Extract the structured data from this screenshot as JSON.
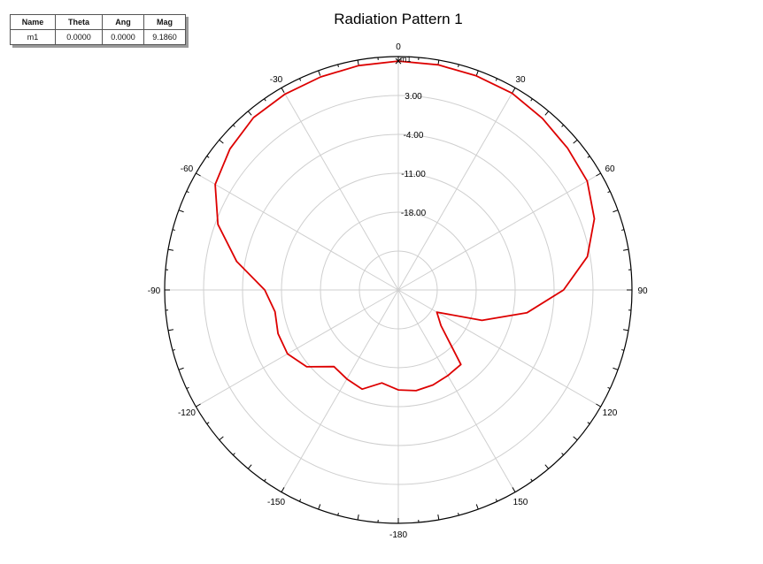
{
  "marker_table": {
    "headers": [
      "Name",
      "Theta",
      "Ang",
      "Mag"
    ],
    "rows": [
      {
        "name": "m1",
        "theta": "0.0000",
        "ang": "0.0000",
        "mag": "9.1860"
      }
    ]
  },
  "chart_data": {
    "type": "polar-line",
    "title": "Radiation Pattern 1",
    "angle_labels": [
      {
        "angle": 0,
        "label": "0"
      },
      {
        "angle": 30,
        "label": "30"
      },
      {
        "angle": 60,
        "label": "60"
      },
      {
        "angle": 90,
        "label": "90"
      },
      {
        "angle": 120,
        "label": "120"
      },
      {
        "angle": 150,
        "label": "150"
      },
      {
        "angle": 180,
        "label": "-180"
      },
      {
        "angle": -150,
        "label": "-150"
      },
      {
        "angle": -120,
        "label": "-120"
      },
      {
        "angle": -90,
        "label": "-90"
      },
      {
        "angle": -60,
        "label": "-60"
      },
      {
        "angle": -30,
        "label": "-30"
      }
    ],
    "radial_ticks": [
      {
        "value": 3.0,
        "label": "3.00"
      },
      {
        "value": -4.0,
        "label": "-4.00"
      },
      {
        "value": -11.0,
        "label": "-11.00"
      },
      {
        "value": -18.0,
        "label": "-18.00"
      }
    ],
    "radial_range": [
      -32,
      10
    ],
    "grid": true,
    "series": [
      {
        "color": "#dd0000",
        "theta": [
          0,
          10,
          20,
          30,
          40,
          50,
          60,
          70,
          80,
          90,
          100,
          110,
          120,
          130,
          140,
          150,
          160,
          170,
          180,
          -170,
          -160,
          -150,
          -140,
          -130,
          -120,
          -110,
          -100,
          -90,
          -80,
          -70,
          -60,
          -50,
          -40,
          -30,
          -20,
          -10
        ],
        "mag": [
          9.19,
          9.15,
          9.0,
          8.9,
          8.3,
          7.7,
          7.2,
          5.5,
          2.5,
          -2.3,
          -8.5,
          -16.0,
          -24.0,
          -22.0,
          -14.5,
          -14.2,
          -13.8,
          -13.6,
          -14.0,
          -15.0,
          -13.0,
          -13.5,
          -14.0,
          -10.5,
          -9.0,
          -9.0,
          -9.5,
          -8.0,
          -2.5,
          2.5,
          6.0,
          7.5,
          8.5,
          8.7,
          8.8,
          9.0
        ]
      }
    ],
    "markers": [
      {
        "name": "m1",
        "theta": 0,
        "mag": 9.186
      }
    ]
  }
}
